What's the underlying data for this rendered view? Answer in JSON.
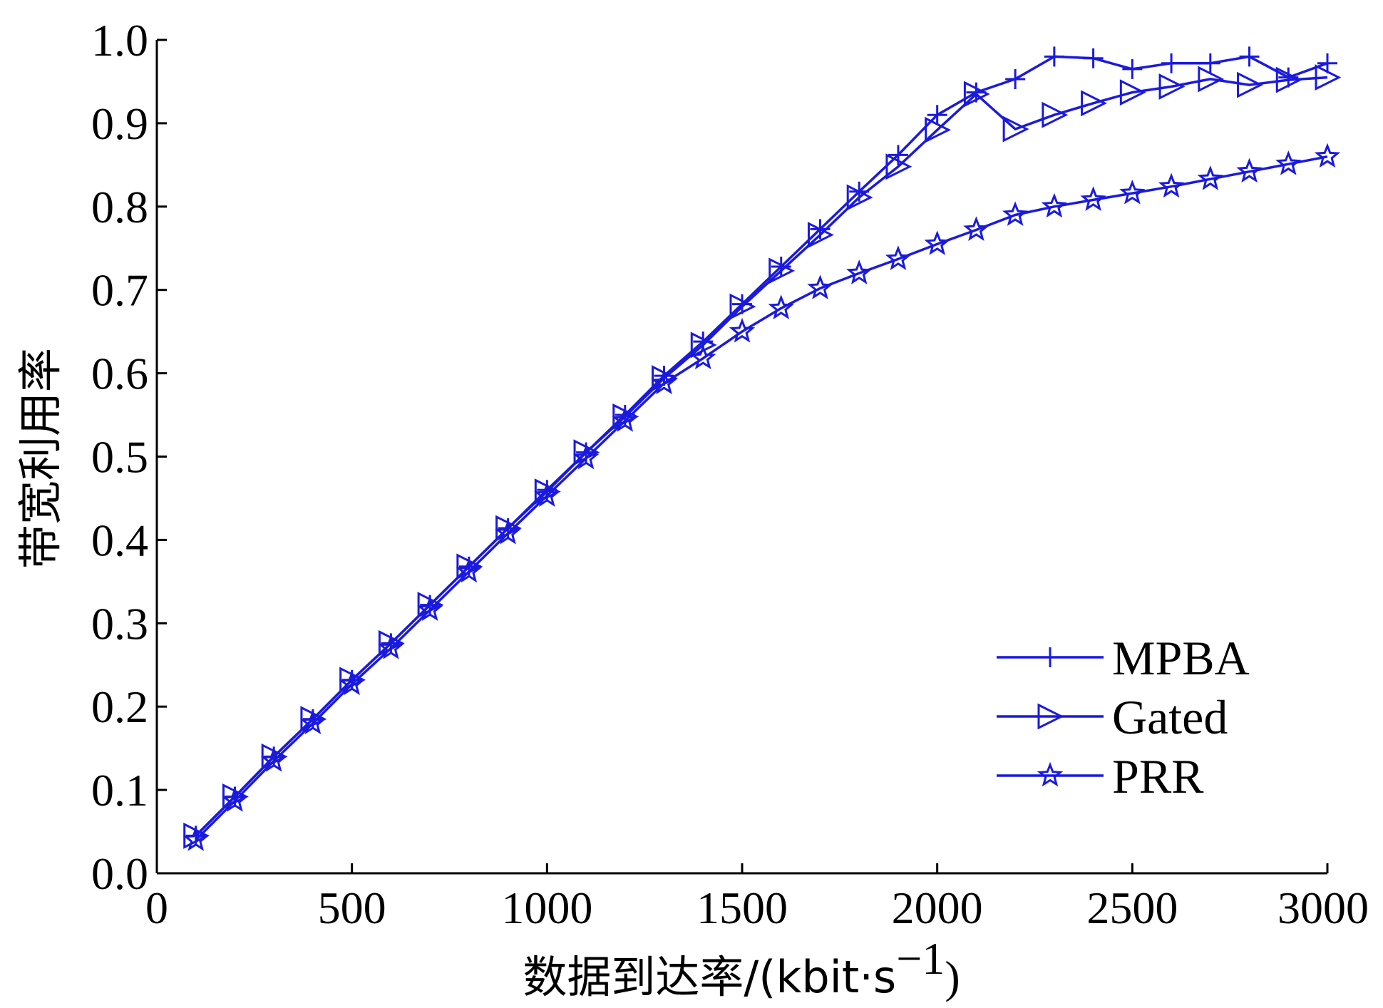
{
  "chart_data": {
    "type": "line",
    "title": "",
    "xlabel": "数据到达率/(kbit·s",
    "xlabel_sup": "−1",
    "xlabel_close": ")",
    "ylabel": "带宽利用率",
    "xlim": [
      0,
      3000
    ],
    "ylim": [
      0.0,
      1.0
    ],
    "x_ticks": [
      "0",
      "500",
      "1000",
      "1500",
      "2000",
      "2500",
      "3000"
    ],
    "y_ticks": [
      "0.0",
      "0.1",
      "0.2",
      "0.3",
      "0.4",
      "0.5",
      "0.6",
      "0.7",
      "0.8",
      "0.9",
      "1.0"
    ],
    "grid": false,
    "legend_position": "bottom-right",
    "x": [
      100,
      200,
      300,
      400,
      500,
      600,
      700,
      800,
      900,
      1000,
      1100,
      1200,
      1300,
      1400,
      1500,
      1600,
      1700,
      1800,
      1900,
      2000,
      2100,
      2200,
      2300,
      2400,
      2500,
      2600,
      2700,
      2800,
      2900,
      3000
    ],
    "series": [
      {
        "name": "MPBA",
        "marker": "plus",
        "color": "#1a1adf",
        "values": [
          0.045,
          0.092,
          0.14,
          0.185,
          0.232,
          0.276,
          0.322,
          0.368,
          0.414,
          0.46,
          0.505,
          0.55,
          0.597,
          0.638,
          0.683,
          0.728,
          0.773,
          0.818,
          0.862,
          0.91,
          0.937,
          0.953,
          0.98,
          0.978,
          0.965,
          0.972,
          0.972,
          0.98,
          0.955,
          0.972
        ]
      },
      {
        "name": "Gated",
        "marker": "triangle-right",
        "color": "#1a1adf",
        "values": [
          0.045,
          0.092,
          0.14,
          0.185,
          0.232,
          0.276,
          0.322,
          0.368,
          0.414,
          0.458,
          0.505,
          0.548,
          0.594,
          0.634,
          0.68,
          0.723,
          0.766,
          0.811,
          0.848,
          0.892,
          0.935,
          0.893,
          0.91,
          0.924,
          0.937,
          0.944,
          0.953,
          0.946,
          0.952,
          0.955
        ]
      },
      {
        "name": "PRR",
        "marker": "star",
        "color": "#1a1adf",
        "values": [
          0.04,
          0.087,
          0.135,
          0.18,
          0.227,
          0.27,
          0.316,
          0.362,
          0.408,
          0.453,
          0.498,
          0.543,
          0.588,
          0.618,
          0.65,
          0.678,
          0.702,
          0.72,
          0.737,
          0.755,
          0.772,
          0.79,
          0.8,
          0.808,
          0.816,
          0.824,
          0.833,
          0.842,
          0.851,
          0.86
        ]
      }
    ]
  }
}
